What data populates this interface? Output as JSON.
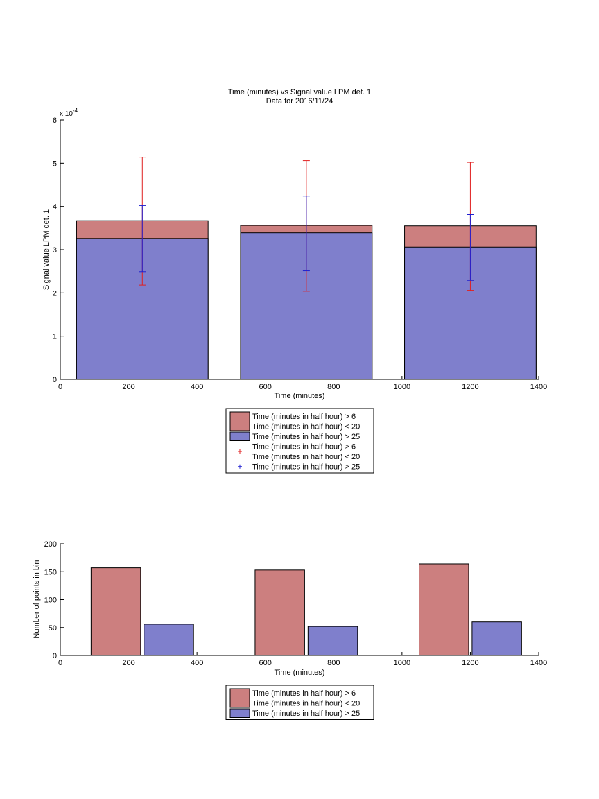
{
  "chart_data": [
    {
      "type": "bar",
      "title": "Time (minutes) vs Signal value LPM det. 1",
      "subtitle": "Data for 2016/11/24",
      "xlabel": "Time (minutes)",
      "ylabel": "Signal value LPM det. 1",
      "exponent_label": "x 10",
      "exponent_power": "-4",
      "xlim": [
        0,
        1400
      ],
      "ylim": [
        0,
        6
      ],
      "xticks": [
        "0",
        "200",
        "400",
        "600",
        "800",
        "1000",
        "1200",
        "1400"
      ],
      "yticks": [
        "0",
        "1",
        "2",
        "3",
        "4",
        "5",
        "6"
      ],
      "grid": false,
      "layout": "overlaid",
      "bar_width": 385,
      "categories": [
        240,
        720,
        1200
      ],
      "series": [
        {
          "name": "Time (minutes in half hour) > 6",
          "values": [
            3.67,
            3.56,
            3.55
          ],
          "color": "#cc7f7f"
        },
        {
          "name": "Time (minutes in half hour) > 25",
          "values": [
            3.26,
            3.39,
            3.06
          ],
          "color": "#7f7fcc"
        }
      ],
      "errorbars": [
        {
          "color": "#e02020",
          "x": [
            240,
            720,
            1200
          ],
          "low": [
            2.18,
            2.04,
            2.06
          ],
          "high": [
            5.14,
            5.06,
            5.02
          ]
        },
        {
          "color": "#2020d0",
          "x": [
            240,
            720,
            1200
          ],
          "low": [
            2.49,
            2.51,
            2.29
          ],
          "high": [
            4.02,
            4.24,
            3.81
          ]
        }
      ],
      "legend": {
        "placement": "below",
        "entries": [
          {
            "kind": "patch",
            "color": "#cc7f7f",
            "lines": [
              "Time (minutes in half hour) > 6",
              "Time (minutes in half hour) < 20"
            ]
          },
          {
            "kind": "patch",
            "color": "#7f7fcc",
            "lines": [
              "Time (minutes in half hour) > 25"
            ]
          },
          {
            "kind": "marker",
            "color": "#e02020",
            "lines": [
              "Time (minutes in half hour) > 6",
              "Time (minutes in half hour) < 20"
            ]
          },
          {
            "kind": "marker",
            "color": "#2020d0",
            "lines": [
              "Time (minutes in half hour) > 25"
            ]
          }
        ]
      }
    },
    {
      "type": "bar",
      "title": "",
      "xlabel": "Time (minutes)",
      "ylabel": "Number of points in bin",
      "xlim": [
        0,
        1400
      ],
      "ylim": [
        0,
        200
      ],
      "xticks": [
        "0",
        "200",
        "400",
        "600",
        "800",
        "1000",
        "1200",
        "1400"
      ],
      "yticks": [
        "0",
        "50",
        "100",
        "150",
        "200"
      ],
      "grid": false,
      "layout": "grouped",
      "bar_width": 145,
      "categories": [
        240,
        720,
        1200
      ],
      "series": [
        {
          "name": "Time (minutes in half hour) > 6",
          "values": [
            157,
            153,
            164
          ],
          "color": "#cc7f7f"
        },
        {
          "name": "Time (minutes in half hour) > 25",
          "values": [
            56,
            52,
            60
          ],
          "color": "#7f7fcc"
        }
      ],
      "legend": {
        "placement": "below",
        "entries": [
          {
            "kind": "patch",
            "color": "#cc7f7f",
            "lines": [
              "Time (minutes in half hour) > 6",
              "Time (minutes in half hour) < 20"
            ]
          },
          {
            "kind": "patch",
            "color": "#7f7fcc",
            "lines": [
              "Time (minutes in half hour) > 25"
            ]
          }
        ]
      }
    }
  ]
}
